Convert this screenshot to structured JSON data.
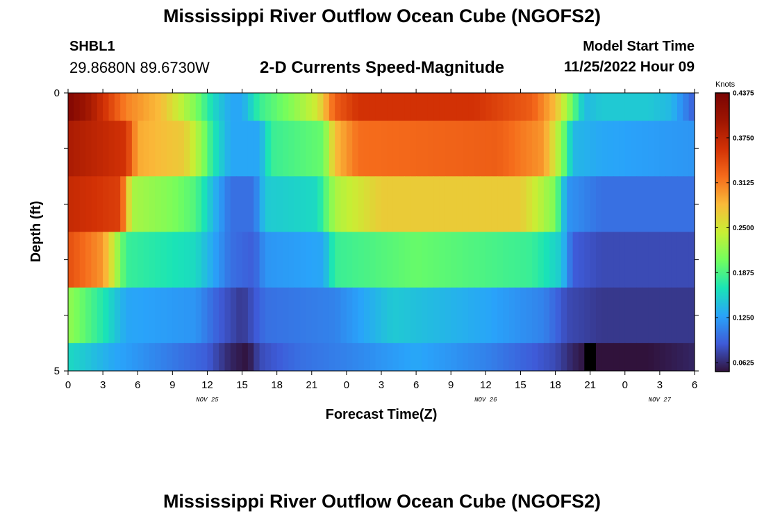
{
  "header": {
    "title": "Mississippi River Outflow Ocean Cube (NGOFS2)",
    "station_id": "SHBL1",
    "station_coords": "29.8680N  89.6730W",
    "subtitle": "2-D Currents Speed-Magnitude",
    "model_start_label": "Model Start Time",
    "model_start_value": "11/25/2022 Hour 09"
  },
  "footer": {
    "title": "Mississippi River Outflow Ocean Cube (NGOFS2)"
  },
  "chart_data": {
    "type": "heatmap",
    "ylabel": "Depth (ft)",
    "xlabel": "Forecast Time(Z)",
    "ylim": [
      0,
      5
    ],
    "y_ticks": [
      "0",
      "5"
    ],
    "x_range_hours": [
      0,
      54
    ],
    "x_tick_labels": [
      "0",
      "3",
      "6",
      "9",
      "12",
      "15",
      "18",
      "21",
      "0",
      "3",
      "6",
      "9",
      "12",
      "15",
      "18",
      "21",
      "0",
      "3",
      "6"
    ],
    "date_labels": [
      {
        "text": "NOV 25",
        "hour": 12
      },
      {
        "text": "NOV 26",
        "hour": 36
      },
      {
        "text": "NOV 27",
        "hour": 51
      }
    ],
    "colorbar": {
      "label": "Knots",
      "min": 0.05,
      "max": 0.4375,
      "ticks": [
        "0.4375",
        "0.3750",
        "0.3125",
        "0.2500",
        "0.1875",
        "0.1250",
        "0.0625"
      ],
      "colors": [
        "#30123b",
        "#3e5bd8",
        "#29a3fa",
        "#1ae4b6",
        "#72fe5e",
        "#c8ef34",
        "#faba39",
        "#f56b1b",
        "#d23105",
        "#9e1502",
        "#7a0403"
      ]
    },
    "layers": [
      {
        "depth_range": [
          0,
          0.5
        ],
        "keyframes": [
          [
            0,
            0.43
          ],
          [
            2,
            0.39
          ],
          [
            5,
            0.31
          ],
          [
            8,
            0.28
          ],
          [
            11,
            0.21
          ],
          [
            12.5,
            0.16
          ],
          [
            14,
            0.13
          ],
          [
            15,
            0.13
          ],
          [
            16.5,
            0.18
          ],
          [
            19,
            0.21
          ],
          [
            21.5,
            0.25
          ],
          [
            23,
            0.33
          ],
          [
            25,
            0.36
          ],
          [
            35,
            0.36
          ],
          [
            40,
            0.33
          ],
          [
            42,
            0.28
          ],
          [
            43.5,
            0.2
          ],
          [
            44.5,
            0.14
          ],
          [
            46,
            0.15
          ],
          [
            50,
            0.15
          ],
          [
            52,
            0.14
          ],
          [
            54,
            0.09
          ]
        ]
      },
      {
        "depth_range": [
          0.5,
          1.5
        ],
        "keyframes": [
          [
            0,
            0.39
          ],
          [
            5,
            0.36
          ],
          [
            6,
            0.29
          ],
          [
            10,
            0.27
          ],
          [
            11.5,
            0.22
          ],
          [
            12.5,
            0.17
          ],
          [
            14,
            0.13
          ],
          [
            16.5,
            0.13
          ],
          [
            17.5,
            0.18
          ],
          [
            22,
            0.2
          ],
          [
            23,
            0.28
          ],
          [
            25,
            0.32
          ],
          [
            37,
            0.33
          ],
          [
            41,
            0.3
          ],
          [
            42.5,
            0.22
          ],
          [
            43.5,
            0.14
          ],
          [
            46,
            0.13
          ],
          [
            54,
            0.12
          ]
        ]
      },
      {
        "depth_range": [
          1.5,
          2.5
        ],
        "keyframes": [
          [
            0,
            0.37
          ],
          [
            4.5,
            0.35
          ],
          [
            5.5,
            0.23
          ],
          [
            9,
            0.21
          ],
          [
            11,
            0.19
          ],
          [
            12.5,
            0.14
          ],
          [
            14,
            0.1
          ],
          [
            16,
            0.1
          ],
          [
            17,
            0.15
          ],
          [
            21.5,
            0.16
          ],
          [
            23,
            0.23
          ],
          [
            27,
            0.27
          ],
          [
            39,
            0.27
          ],
          [
            42,
            0.21
          ],
          [
            43,
            0.12
          ],
          [
            46,
            0.1
          ],
          [
            54,
            0.1
          ]
        ]
      },
      {
        "depth_range": [
          2.5,
          3.5
        ],
        "keyframes": [
          [
            0,
            0.34
          ],
          [
            3,
            0.3
          ],
          [
            4,
            0.24
          ],
          [
            5,
            0.18
          ],
          [
            11,
            0.16
          ],
          [
            12.5,
            0.13
          ],
          [
            14,
            0.1
          ],
          [
            16,
            0.09
          ],
          [
            17,
            0.12
          ],
          [
            22,
            0.13
          ],
          [
            23,
            0.18
          ],
          [
            30,
            0.2
          ],
          [
            40,
            0.18
          ],
          [
            42.5,
            0.15
          ],
          [
            43.5,
            0.09
          ],
          [
            46,
            0.08
          ],
          [
            54,
            0.08
          ]
        ]
      },
      {
        "depth_range": [
          3.5,
          4.5
        ],
        "keyframes": [
          [
            0,
            0.22
          ],
          [
            3,
            0.17
          ],
          [
            5,
            0.13
          ],
          [
            11,
            0.12
          ],
          [
            13,
            0.09
          ],
          [
            15,
            0.07
          ],
          [
            17,
            0.1
          ],
          [
            23,
            0.11
          ],
          [
            28,
            0.15
          ],
          [
            36,
            0.13
          ],
          [
            41,
            0.11
          ],
          [
            43,
            0.08
          ],
          [
            46,
            0.07
          ],
          [
            54,
            0.07
          ]
        ]
      },
      {
        "depth_range": [
          4.5,
          5
        ],
        "keyframes": [
          [
            0,
            0.16
          ],
          [
            4,
            0.13
          ],
          [
            8,
            0.11
          ],
          [
            12,
            0.09
          ],
          [
            14,
            0.06
          ],
          [
            15.5,
            0.05
          ],
          [
            16.5,
            0.08
          ],
          [
            20,
            0.1
          ],
          [
            24,
            0.11
          ],
          [
            30,
            0.13
          ],
          [
            36,
            0.11
          ],
          [
            42,
            0.08
          ],
          [
            43.5,
            0.06
          ],
          [
            44.6,
            0.05
          ],
          [
            44.9,
            0.0
          ],
          [
            45.3,
            0.0
          ],
          [
            45.5,
            0.05
          ],
          [
            50,
            0.05
          ],
          [
            54,
            0.06
          ]
        ]
      }
    ]
  }
}
